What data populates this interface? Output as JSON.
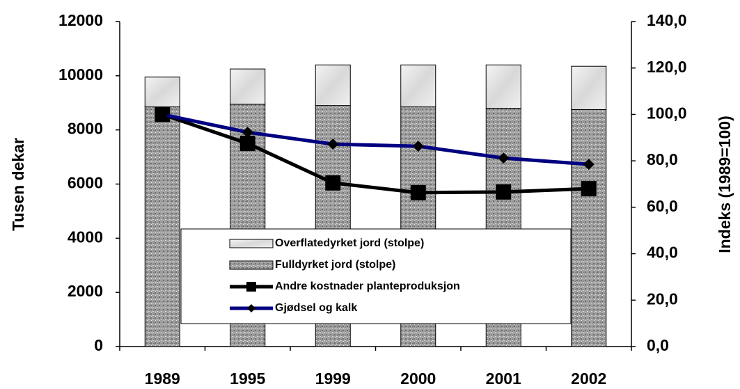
{
  "chart_data": {
    "type": "bar",
    "stacked": true,
    "categories": [
      "1989",
      "1995",
      "1999",
      "2000",
      "2001",
      "2002"
    ],
    "series": [
      {
        "name": "Fulldyrket jord (stolpe)",
        "type": "bar",
        "color": "#a0a0a0",
        "values": [
          8850,
          8950,
          8900,
          8850,
          8800,
          8750
        ]
      },
      {
        "name": "Overflatedyrket jord (stolpe)",
        "type": "bar",
        "color": "#e6e6e6",
        "values": [
          1100,
          1300,
          1500,
          1550,
          1600,
          1600
        ]
      },
      {
        "name": "Andre kostnader planteproduksjon",
        "type": "line",
        "axis": "y2",
        "color": "#000000",
        "marker": "square",
        "values": [
          100,
          87.5,
          70.5,
          66.3,
          66.6,
          68
        ]
      },
      {
        "name": "Gjødsel og kalk",
        "type": "line",
        "axis": "y2",
        "color": "#000080",
        "marker": "diamond",
        "values": [
          100,
          92.3,
          87.2,
          86.3,
          81.2,
          78.5
        ]
      }
    ],
    "legend_order": [
      1,
      0,
      2,
      3
    ],
    "ylabel": "Tusen dekar",
    "y2label": "Indeks (1989=100)",
    "ylim": [
      0,
      12000
    ],
    "yticks": [
      0,
      2000,
      4000,
      6000,
      8000,
      10000,
      12000
    ],
    "y2lim": [
      0,
      140
    ],
    "y2ticks": [
      {
        "value": 0,
        "label": "0,0"
      },
      {
        "value": 20,
        "label": "20,0"
      },
      {
        "value": 40,
        "label": "40,0"
      },
      {
        "value": 60,
        "label": "60,0"
      },
      {
        "value": 80,
        "label": "80,0"
      },
      {
        "value": 100,
        "label": "100,0"
      },
      {
        "value": 120,
        "label": "120,0"
      },
      {
        "value": 140,
        "label": "140,0"
      }
    ],
    "legend": "lower center",
    "grid": false
  }
}
